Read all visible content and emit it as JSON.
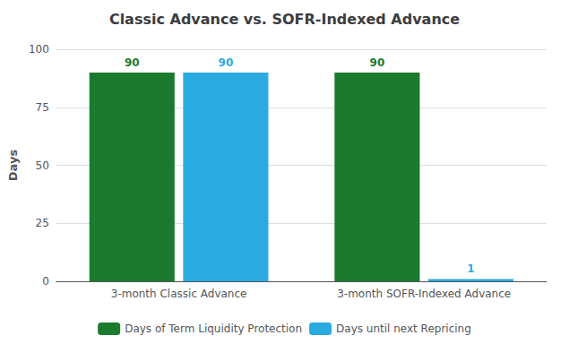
{
  "chart_data": {
    "type": "bar",
    "title": "Classic Advance vs. SOFR-Indexed Advance",
    "ylabel": "Days",
    "categories": [
      "3-month Classic Advance",
      "3-month SOFR-Indexed Advance"
    ],
    "series": [
      {
        "name": "Days of Term Liquidity Protection",
        "color": "#1a7a2e",
        "values": [
          90,
          90
        ]
      },
      {
        "name": "Days until next Repricing",
        "color": "#29abe2",
        "values": [
          90,
          1
        ]
      }
    ],
    "ylim": [
      0,
      100
    ],
    "yticks": [
      0,
      25,
      50,
      75,
      100
    ],
    "grid": true,
    "legend": "bottom",
    "data_labels": true
  }
}
